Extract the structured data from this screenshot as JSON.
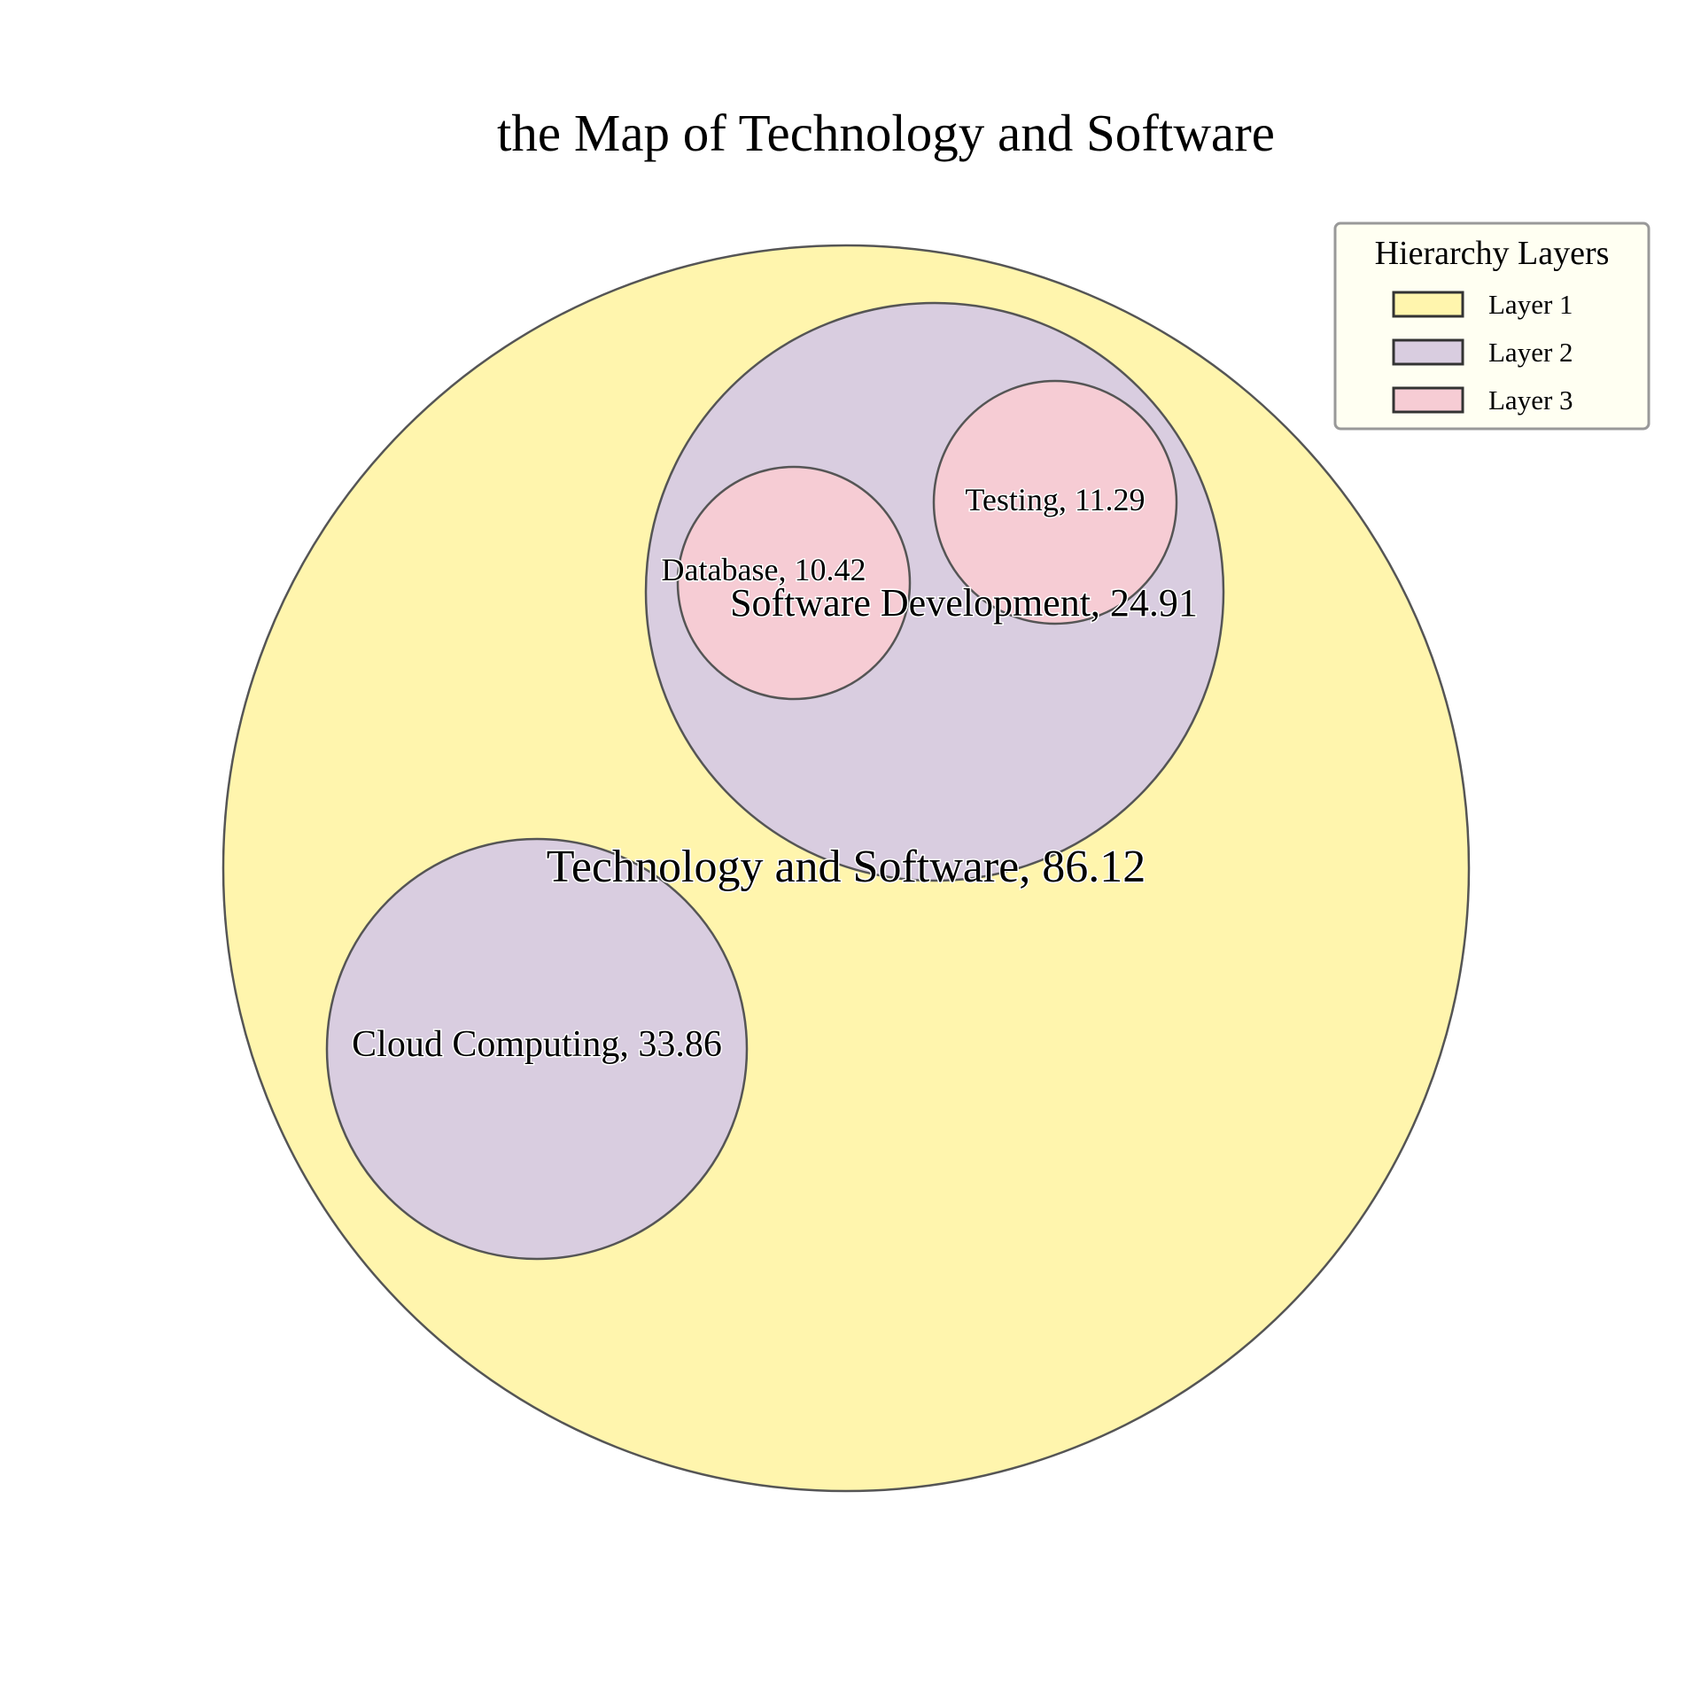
{
  "chart_data": {
    "type": "circle-packing",
    "title": "the Map of Technology and Software",
    "nodes": [
      {
        "name": "Technology and Software",
        "value": 86.12,
        "layer": 1,
        "parent": null,
        "label": "Technology and Software, 86.12"
      },
      {
        "name": "Software Development",
        "value": 24.91,
        "layer": 2,
        "parent": "Technology and Software",
        "label": "Software Development, 24.91"
      },
      {
        "name": "Cloud Computing",
        "value": 33.86,
        "layer": 2,
        "parent": "Technology and Software",
        "label": "Cloud Computing, 33.86"
      },
      {
        "name": "Testing",
        "value": 11.29,
        "layer": 3,
        "parent": "Software Development",
        "label": "Testing, 11.29"
      },
      {
        "name": "Database",
        "value": 10.42,
        "layer": 3,
        "parent": "Software Development",
        "label": "Database, 10.42"
      }
    ],
    "legend": {
      "title": "Hierarchy Layers",
      "placement": "top-right",
      "items": [
        {
          "label": "Layer 1",
          "color": "#fff5ad"
        },
        {
          "label": "Layer 2",
          "color": "#d9cde0"
        },
        {
          "label": "Layer 3",
          "color": "#f6ccd4"
        }
      ]
    },
    "colors": {
      "layer1": "#fff5ad",
      "layer2": "#d9cde0",
      "layer3": "#f6ccd4",
      "edge": "#555555"
    }
  }
}
